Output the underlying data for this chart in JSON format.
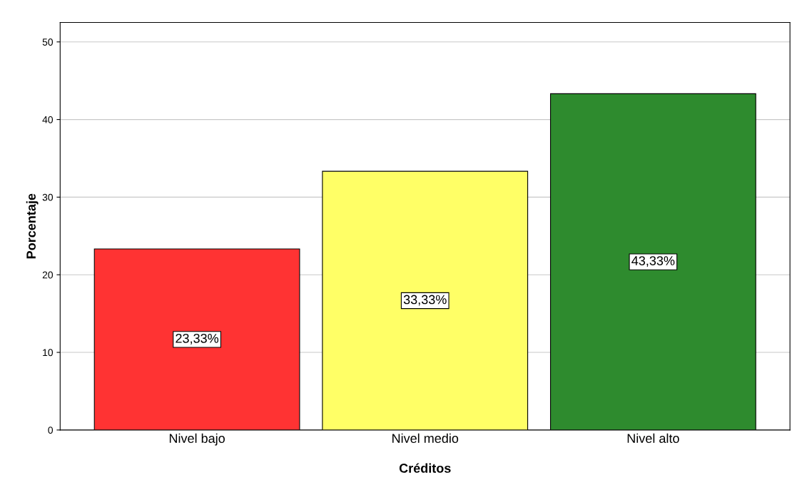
{
  "chart_data": {
    "type": "bar",
    "xlabel": "Créditos",
    "ylabel": "Porcentaje",
    "categories": [
      "Nivel bajo",
      "Nivel medio",
      "Nivel alto"
    ],
    "values": [
      23.33,
      33.33,
      43.33
    ],
    "colors": [
      "#ff3333",
      "#ffff66",
      "#2e8b2e"
    ],
    "value_labels": [
      "23,33%",
      "33,33%",
      "43,33%"
    ],
    "ylim": [
      0,
      52.5
    ],
    "yticks": [
      0,
      10,
      20,
      30,
      40,
      50
    ],
    "grid": "y",
    "legend": false
  }
}
